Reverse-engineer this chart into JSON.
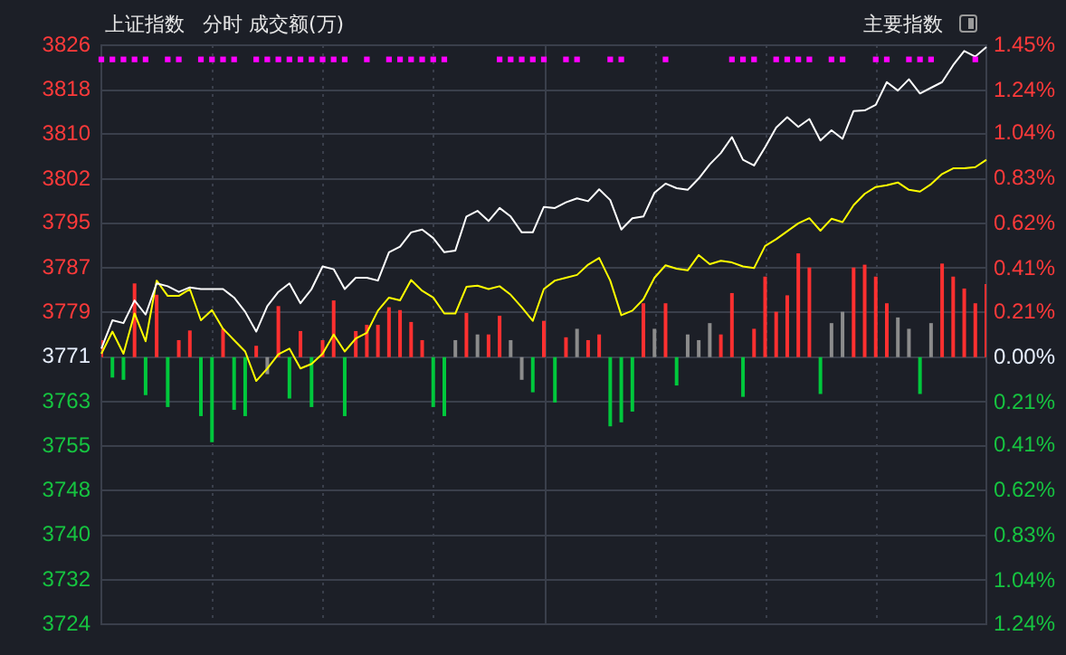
{
  "chart_data": {
    "type": "line",
    "title": "上证指数",
    "annotations": [
      "分时 成交额(万)",
      "主要指数"
    ],
    "categories": [
      null,
      null,
      null,
      null,
      null,
      null,
      null,
      null,
      null,
      null,
      null,
      null,
      null,
      null,
      null,
      null,
      null,
      null,
      null,
      null,
      null,
      null,
      null,
      null,
      null,
      null,
      null,
      null,
      null,
      null,
      null,
      null,
      null,
      null,
      null,
      null,
      null,
      null,
      null,
      null,
      null,
      null,
      null,
      null,
      null,
      null,
      null,
      null,
      null,
      null,
      null,
      null,
      null,
      null,
      null,
      null,
      null,
      null,
      null,
      null,
      null,
      null,
      null,
      null,
      null,
      null,
      null,
      null,
      null,
      null,
      null,
      null,
      null,
      null,
      null,
      null,
      null,
      null,
      null,
      null,
      null
    ],
    "ylim": [
      3723.9,
      3826
    ],
    "yticks": [
      {
        "value": 3723.9,
        "label": "3724"
      },
      {
        "value": 3731.7,
        "label": "3732"
      },
      {
        "value": 3739.6,
        "label": "3740"
      },
      {
        "value": 3747.5,
        "label": "3748"
      },
      {
        "value": 3755.3,
        "label": "3755"
      },
      {
        "value": 3763.1,
        "label": "3763"
      },
      3771,
      {
        "value": 3778.9,
        "label": "3779"
      },
      {
        "value": 3786.7,
        "label": "3787"
      },
      {
        "value": 3794.6,
        "label": "3795"
      },
      {
        "value": 3802.4,
        "label": "3802"
      },
      {
        "value": 3810.3,
        "label": "3810"
      },
      {
        "value": 3818.1,
        "label": "3818"
      },
      3826
    ],
    "y2lim": [
      -1.24,
      1.45
    ],
    "y2ticks": [
      {
        "value": -1.24,
        "label": "1.24%"
      },
      {
        "value": -1.04,
        "label": "1.04%"
      },
      {
        "value": -0.83,
        "label": "0.83%"
      },
      {
        "value": -0.62,
        "label": "0.62%"
      },
      {
        "value": -0.41,
        "label": "0.41%"
      },
      {
        "value": -0.21,
        "label": "0.21%"
      },
      {
        "value": 0,
        "label": "0.00%"
      },
      {
        "value": 0.21,
        "label": "0.21%"
      },
      {
        "value": 0.41,
        "label": "0.41%"
      },
      {
        "value": 0.62,
        "label": "0.62%"
      },
      {
        "value": 0.83,
        "label": "0.83%"
      },
      {
        "value": 1.04,
        "label": "1.04%"
      },
      {
        "value": 1.24,
        "label": "1.24%"
      },
      {
        "value": 1.45,
        "label": "1.45%"
      }
    ],
    "grid": true,
    "marker": "none",
    "series": [
      {
        "type": "bar",
        "base": [
          3771,
          3771,
          3771,
          3771,
          3771,
          3771,
          3771,
          3771,
          3771,
          3771,
          3771,
          3771,
          3771,
          3771,
          3771,
          3771,
          3771,
          3771,
          3771,
          3771,
          3771,
          3771,
          3771,
          3771,
          3771,
          3771,
          3771,
          3771,
          3771,
          3771,
          3771,
          3771,
          3771,
          3771,
          3771,
          3771,
          3771,
          3771,
          3771,
          3771,
          3771,
          3771,
          3771,
          3771,
          3771,
          3771,
          3771,
          3771,
          3771,
          3771,
          3771,
          3771,
          3771,
          3771,
          3771,
          3771,
          3771,
          3771,
          3771,
          3771,
          3771,
          3771,
          3771,
          3771,
          3771,
          3771,
          3771,
          3771,
          3771,
          3771,
          3771,
          3771,
          3771,
          3771,
          3771,
          3771,
          3771,
          3771,
          3771,
          3771,
          3771
        ],
        "values": [
          3,
          -3.6,
          -4,
          13,
          -6.7,
          11,
          -8.8,
          3,
          4.7,
          -10.4,
          -15,
          5,
          -9.3,
          -10.4,
          2,
          -3,
          9,
          -7.3,
          4.6,
          -8.8,
          3,
          10,
          -10.4,
          4.6,
          5.7,
          5.7,
          8.8,
          8.3,
          6.2,
          3,
          -8.8,
          -10.4,
          3,
          7.8,
          4,
          4,
          7.3,
          3,
          -4,
          -6.2,
          6.4,
          -8,
          3.5,
          5,
          3,
          4,
          -12.2,
          -11.5,
          -9.6,
          9.5,
          5,
          9.5,
          -5,
          4,
          3,
          6,
          4,
          11.3,
          -7,
          5,
          14.2,
          8,
          10.9,
          18.3,
          15.8,
          -6.5,
          6,
          8,
          15.8,
          16.3,
          14.2,
          9.5,
          7,
          5,
          -6.5,
          6,
          16.5,
          14.2,
          12.1,
          9.5,
          12.9
        ],
        "colors": [
          "#ff3030",
          "#00c83c",
          "#00c83c",
          "#ff3030",
          "#00c83c",
          "#ff3030",
          "#00c83c",
          "#ff3030",
          "#ff3030",
          "#00c83c",
          "#00c83c",
          "#ff3030",
          "#00c83c",
          "#00c83c",
          "#ff3030",
          "#8c8c8c",
          "#ff3030",
          "#00c83c",
          "#ff3030",
          "#00c83c",
          "#ff3030",
          "#ff3030",
          "#00c83c",
          "#ff3030",
          "#ff3030",
          "#ff3030",
          "#ff3030",
          "#ff3030",
          "#ff3030",
          "#ff3030",
          "#00c83c",
          "#00c83c",
          "#8c8c8c",
          "#ff3030",
          "#8c8c8c",
          "#ff3030",
          "#ff3030",
          "#8c8c8c",
          "#8c8c8c",
          "#00c83c",
          "#ff3030",
          "#00c83c",
          "#ff3030",
          "#8c8c8c",
          "#ff3030",
          "#ff3030",
          "#00c83c",
          "#00c83c",
          "#00c83c",
          "#ff3030",
          "#8c8c8c",
          "#ff3030",
          "#00c83c",
          "#8c8c8c",
          "#8c8c8c",
          "#8c8c8c",
          "#ff3030",
          "#ff3030",
          "#00c83c",
          "#ff3030",
          "#ff3030",
          "#ff3030",
          "#ff3030",
          "#ff3030",
          "#ff3030",
          "#00c83c",
          "#8c8c8c",
          "#8c8c8c",
          "#ff3030",
          "#ff3030",
          "#ff3030",
          "#ff3030",
          "#8c8c8c",
          "#8c8c8c",
          "#00c83c",
          "#8c8c8c",
          "#ff3030",
          "#ff3030",
          "#ff3030",
          "#ff3030",
          "#ff3030"
        ]
      },
      {
        "color": "#ffffff",
        "values": [
          3772.5,
          3777.5,
          3777,
          3781,
          3778.5,
          3784,
          3783.5,
          3782.5,
          3783.3,
          3783,
          3783,
          3783,
          3781.5,
          3779,
          3775.5,
          3780,
          3782.5,
          3784,
          3780.5,
          3783,
          3787,
          3786.5,
          3783,
          3785,
          3785,
          3784.5,
          3789.5,
          3790.5,
          3793,
          3793.5,
          3792,
          3789.5,
          3789.8,
          3795.8,
          3796.8,
          3795,
          3797.3,
          3795.8,
          3793,
          3793,
          3797.5,
          3797.3,
          3798.3,
          3799,
          3798.5,
          3800.6,
          3798.7,
          3793.5,
          3795.5,
          3795.8,
          3800,
          3801.6,
          3800.8,
          3800.5,
          3802.5,
          3805,
          3807,
          3809.8,
          3805.8,
          3804.8,
          3808,
          3811.5,
          3813.3,
          3811.6,
          3813,
          3809.2,
          3811,
          3809.5,
          3814.4,
          3814.5,
          3815.5,
          3819.5,
          3818,
          3820,
          3817.5,
          3818.5,
          3819.5,
          3822.5,
          3825,
          3824,
          3825.7
        ]
      },
      {
        "color": "#ffff00",
        "values": [
          3771.6,
          3775.5,
          3771.6,
          3778.7,
          3773.8,
          3784.5,
          3781.8,
          3781.8,
          3783,
          3777.5,
          3779.3,
          3776,
          3774,
          3772,
          3766.8,
          3769,
          3771.5,
          3772.5,
          3769,
          3769.8,
          3771.6,
          3775,
          3772,
          3774.3,
          3775.3,
          3779.2,
          3781.5,
          3781,
          3784.6,
          3782.7,
          3781.5,
          3778.7,
          3778.7,
          3783.4,
          3783.6,
          3783,
          3783.5,
          3782,
          3779.8,
          3777.4,
          3783,
          3784.5,
          3785,
          3785.5,
          3787.3,
          3788.5,
          3784.5,
          3778.4,
          3779.2,
          3781.2,
          3785,
          3787.2,
          3786.6,
          3786.3,
          3789,
          3787.4,
          3788,
          3787.7,
          3787,
          3786.7,
          3790.6,
          3791.8,
          3793.2,
          3794.6,
          3795.5,
          3793.3,
          3795.4,
          3794.8,
          3797.8,
          3799.8,
          3801,
          3801.3,
          3801.8,
          3800.5,
          3800.2,
          3801.5,
          3803.3,
          3804.3,
          3804.3,
          3804.5,
          3805.8
        ]
      },
      {
        "type": "scatter",
        "marker": "square",
        "color": "#ff00ff",
        "values": [
          3823.5,
          3823.5,
          3823.5,
          3823.5,
          3823.5,
          null,
          3823.5,
          3823.5,
          null,
          3823.5,
          3823.5,
          3823.5,
          3823.5,
          null,
          3823.5,
          3823.5,
          3823.5,
          3823.5,
          3823.5,
          3823.5,
          3823.5,
          3823.5,
          3823.5,
          null,
          3823.5,
          null,
          3823.5,
          3823.5,
          3823.5,
          3823.5,
          3823.5,
          3823.5,
          null,
          null,
          null,
          null,
          3823.5,
          3823.5,
          3823.5,
          3823.5,
          3823.5,
          null,
          3823.5,
          3823.5,
          null,
          null,
          3823.5,
          3823.5,
          null,
          null,
          null,
          3823.5,
          null,
          null,
          null,
          null,
          null,
          3823.5,
          3823.5,
          3823.5,
          null,
          3823.5,
          3823.5,
          3823.5,
          3823.5,
          null,
          3823.5,
          3823.5,
          null,
          null,
          3823.5,
          3823.5,
          null,
          3823.5,
          3823.5,
          3823.5,
          null,
          null,
          null,
          3823.5,
          null
        ]
      }
    ]
  }
}
